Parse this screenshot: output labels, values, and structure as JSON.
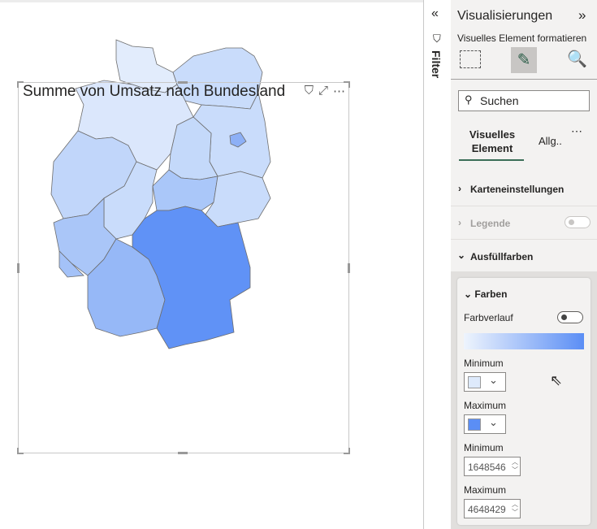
{
  "visual": {
    "title": "Summe von Umsatz nach Bundesland",
    "icons": [
      "filter-icon",
      "focus-mode-icon",
      "more-options-icon"
    ]
  },
  "map": {
    "states": [
      {
        "name": "Schleswig-Holstein",
        "color": "#e2ecfc"
      },
      {
        "name": "Mecklenburg-Vorpommern",
        "color": "#c9dcfb"
      },
      {
        "name": "Niedersachsen",
        "color": "#dbe7fc"
      },
      {
        "name": "Brandenburg",
        "color": "#c9dcfb"
      },
      {
        "name": "Berlin",
        "color": "#8db0f6"
      },
      {
        "name": "Sachsen-Anhalt",
        "color": "#c4d9fa"
      },
      {
        "name": "Nordrhein-Westfalen",
        "color": "#c1d6fa"
      },
      {
        "name": "Hessen",
        "color": "#c9dcfb"
      },
      {
        "name": "Thüringen",
        "color": "#aac7f9"
      },
      {
        "name": "Sachsen",
        "color": "#c9dcfb"
      },
      {
        "name": "Rheinland-Pfalz",
        "color": "#aac6f8"
      },
      {
        "name": "Saarland",
        "color": "#a4c2f8"
      },
      {
        "name": "Baden-Württemberg",
        "color": "#96b8f7"
      },
      {
        "name": "Bayern",
        "color": "#6092f6"
      }
    ]
  },
  "filter": {
    "label": "Filter"
  },
  "pane": {
    "title": "Visualisierungen",
    "subtitle": "Visuelles Element formatieren",
    "search_placeholder": "Suchen",
    "tabs": [
      {
        "label": "Visuelles Element",
        "active": true
      },
      {
        "label": "Allg.."
      }
    ],
    "sections": {
      "map_settings": "Karteneinstellungen",
      "legend": "Legende",
      "fill": "Ausfüllfarben"
    },
    "legend_on": false,
    "colors": {
      "title": "Farben",
      "gradient_label": "Farbverlauf",
      "gradient_on": false,
      "min_label": "Minimum",
      "min_color": "#deeafc",
      "max_label": "Maximum",
      "max_color": "#5b8ef5",
      "min_value_label": "Minimum",
      "min_value": "1648546",
      "max_value_label": "Maximum",
      "max_value": "4648429"
    }
  }
}
